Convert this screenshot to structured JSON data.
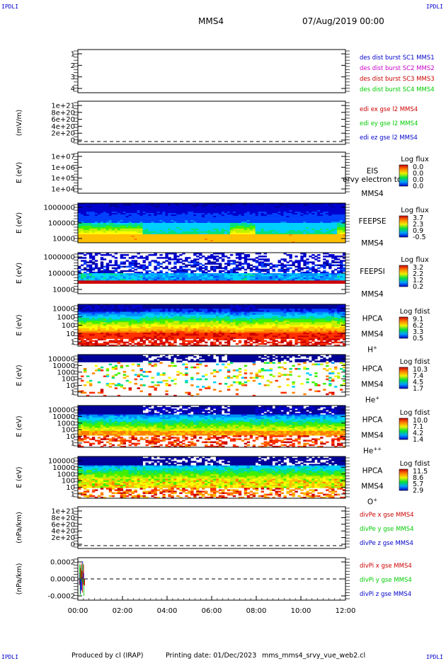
{
  "header": {
    "corner_tl": "IPDLI",
    "corner_tr": "IPDLI",
    "corner_bl": "IPDLI",
    "corner_br": "IPDLI",
    "spacecraft": "MMS4",
    "datetime": "07/Aug/2019 00:00"
  },
  "footer": {
    "produced_by": "Produced by cl (IRAP)",
    "printing_date": "Printing date: 01/Dec/2023",
    "script_name": "mms_mms4_srvy_vue_web2.cl"
  },
  "colors": {
    "mms1": "#0000cc",
    "mms2": "#cc00cc",
    "mms3": "#cc0000",
    "mms4": "#00cc00",
    "x_comp": "#cc0000",
    "y_comp": "#00cc00",
    "z_comp": "#0000cc"
  },
  "chart_data": [
    {
      "id": "p1",
      "type": "line",
      "ylabel": "",
      "yticks": [
        "1",
        "2",
        "3",
        "4"
      ],
      "series": [
        {
          "name": "des dist burst SC1 MMS1",
          "color": "#0000cc",
          "values": []
        },
        {
          "name": "des dist burst SC2 MMS2",
          "color": "#cc00cc",
          "values": []
        },
        {
          "name": "des dist burst SC3 MMS3",
          "color": "#cc0000",
          "values": []
        },
        {
          "name": "des dist burst SC4 MMS4",
          "color": "#00cc00",
          "values": []
        }
      ]
    },
    {
      "id": "p2",
      "type": "line",
      "ylabel": "(mV/m)",
      "yticks": [
        "1e+21",
        "8e+20",
        "6e+20",
        "4e+20",
        "2e+20",
        "0"
      ],
      "zero_line": true,
      "series": [
        {
          "name": "edi ex gse l2 MMS4",
          "color": "#cc0000",
          "values": []
        },
        {
          "name": "edi ey gse l2 MMS4",
          "color": "#00cc00",
          "values": []
        },
        {
          "name": "edi ez gse l2 MMS4",
          "color": "#0000cc",
          "values": []
        }
      ]
    },
    {
      "id": "p3",
      "type": "heatmap",
      "ylabel": "E (eV)",
      "yticks": [
        "1e+07",
        "1e+06",
        "1e+05",
        "1e+04"
      ],
      "labels": [
        "EIS",
        "MMS4"
      ],
      "overlay_text": "ervy electron to",
      "colorbar": {
        "title": "Log flux",
        "ticks": [
          "0.0",
          "0.0",
          "0.0",
          "0.0"
        ]
      },
      "pattern": "empty"
    },
    {
      "id": "p4",
      "type": "heatmap",
      "ylabel": "E (eV)",
      "yticks": [
        "1000000",
        "100000",
        "10000"
      ],
      "labels": [
        "FEEPSE",
        "MMS4"
      ],
      "colorbar": {
        "title": "Log flux",
        "ticks": [
          "3.7",
          "2.3",
          "0.9",
          "-0.5"
        ]
      },
      "pattern": "feepse"
    },
    {
      "id": "p5",
      "type": "heatmap",
      "ylabel": "E (eV)",
      "yticks": [
        "1000000",
        "100000",
        "10000"
      ],
      "labels": [
        "FEEPSI",
        "MMS4"
      ],
      "colorbar": {
        "title": "Log flux",
        "ticks": [
          "3.2",
          "2.2",
          "1.2",
          "0.2"
        ]
      },
      "pattern": "feepsi"
    },
    {
      "id": "p6",
      "type": "heatmap",
      "ylabel": "E (eV)",
      "yticks": [
        "10000",
        "1000",
        "100",
        "10",
        "1"
      ],
      "labels": [
        "HPCA",
        "MMS4",
        "H+"
      ],
      "colorbar": {
        "title": "Log fdist",
        "ticks": [
          "9.1",
          "6.2",
          "3.3",
          "0.5"
        ]
      },
      "pattern": "hplus"
    },
    {
      "id": "p7",
      "type": "heatmap",
      "ylabel": "E (eV)",
      "yticks": [
        "100000",
        "10000",
        "1000",
        "100",
        "10",
        "1"
      ],
      "labels": [
        "HPCA",
        "MMS4",
        "He+"
      ],
      "colorbar": {
        "title": "Log fdist",
        "ticks": [
          "10.3",
          "7.4",
          "4.5",
          "1.7"
        ]
      },
      "pattern": "heplus"
    },
    {
      "id": "p8",
      "type": "heatmap",
      "ylabel": "E (eV)",
      "yticks": [
        "100000",
        "10000",
        "1000",
        "100",
        "10",
        "1"
      ],
      "labels": [
        "HPCA",
        "MMS4",
        "He++"
      ],
      "colorbar": {
        "title": "Log fdist",
        "ticks": [
          "10.0",
          "7.1",
          "4.2",
          "1.4"
        ]
      },
      "pattern": "heplusplus"
    },
    {
      "id": "p9",
      "type": "heatmap",
      "ylabel": "E (eV)",
      "yticks": [
        "100000",
        "10000",
        "1000",
        "100",
        "10",
        "1"
      ],
      "labels": [
        "HPCA",
        "MMS4",
        "O+"
      ],
      "colorbar": {
        "title": "Log fdist",
        "ticks": [
          "11.5",
          "8.6",
          "5.7",
          "2.9"
        ]
      },
      "pattern": "oplus"
    },
    {
      "id": "p10",
      "type": "line",
      "ylabel": "(nPa/km)",
      "yticks": [
        "1e+21",
        "8e+20",
        "6e+20",
        "4e+20",
        "2e+20",
        "0"
      ],
      "zero_line": true,
      "series": [
        {
          "name": "divPe x gse MMS4",
          "color": "#cc0000",
          "values": []
        },
        {
          "name": "divPe y gse MMS4",
          "color": "#00cc00",
          "values": []
        },
        {
          "name": "divPe z gse MMS4",
          "color": "#0000cc",
          "values": []
        }
      ]
    },
    {
      "id": "p11",
      "type": "line",
      "ylabel": "(nPa/km)",
      "yticks": [
        "0.0002",
        "0.0000",
        "-0.0002"
      ],
      "zero_line": true,
      "spike_time": "00:10",
      "series": [
        {
          "name": "divPi x gse MMS4",
          "color": "#cc0000",
          "values": []
        },
        {
          "name": "divPi y gse MMS4",
          "color": "#00cc00",
          "values": []
        },
        {
          "name": "divPi z gse MMS4",
          "color": "#0000cc",
          "values": []
        }
      ]
    }
  ],
  "time_axis": {
    "range": [
      "00:00",
      "12:00"
    ],
    "ticks": [
      "00:00",
      "02:00",
      "04:00",
      "06:00",
      "08:00",
      "10:00",
      "12:00"
    ]
  }
}
